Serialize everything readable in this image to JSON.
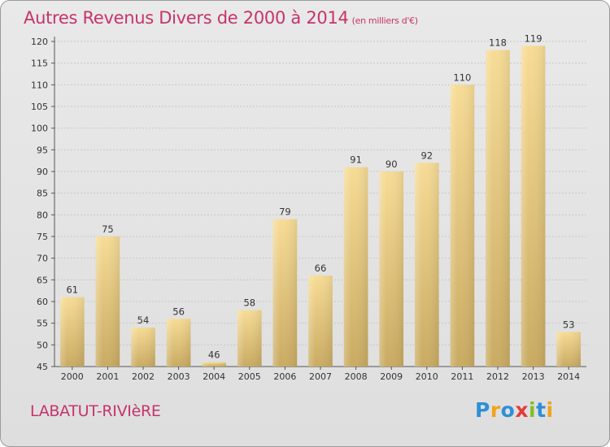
{
  "title": "Autres Revenus Divers de 2000 à 2014",
  "title_unit": "(en milliers d'€)",
  "commune": "LABATUT-RIVIèRE",
  "logo": {
    "text": "Proxiti",
    "letters": [
      {
        "ch": "P",
        "color": "#2e8fd6"
      },
      {
        "ch": "r",
        "color": "#f0a31c"
      },
      {
        "ch": "o",
        "color": "#2e8fd6"
      },
      {
        "ch": "x",
        "color": "#e83a3a"
      },
      {
        "ch": "i",
        "color": "#7fbf2a"
      },
      {
        "ch": "t",
        "color": "#2e8fd6"
      },
      {
        "ch": "i",
        "color": "#f0a31c"
      }
    ]
  },
  "colors": {
    "title": "#c8336b",
    "bar_light": "#f7dc96",
    "bar_dark": "#c9ab62",
    "grid": "#c8c8c8"
  },
  "chart_data": {
    "type": "bar",
    "title": "Autres Revenus Divers de 2000 à 2014",
    "xlabel": "",
    "ylabel": "",
    "categories": [
      "2000",
      "2001",
      "2002",
      "2003",
      "2004",
      "2005",
      "2006",
      "2007",
      "2008",
      "2009",
      "2010",
      "2011",
      "2012",
      "2013",
      "2014"
    ],
    "values": [
      61,
      75,
      54,
      56,
      46,
      58,
      79,
      66,
      91,
      90,
      92,
      110,
      118,
      119,
      53
    ],
    "ylim": [
      45,
      120
    ],
    "yticks": [
      45,
      50,
      55,
      60,
      65,
      70,
      75,
      80,
      85,
      90,
      95,
      100,
      105,
      110,
      115,
      120
    ],
    "grid": true,
    "legend": "none"
  }
}
